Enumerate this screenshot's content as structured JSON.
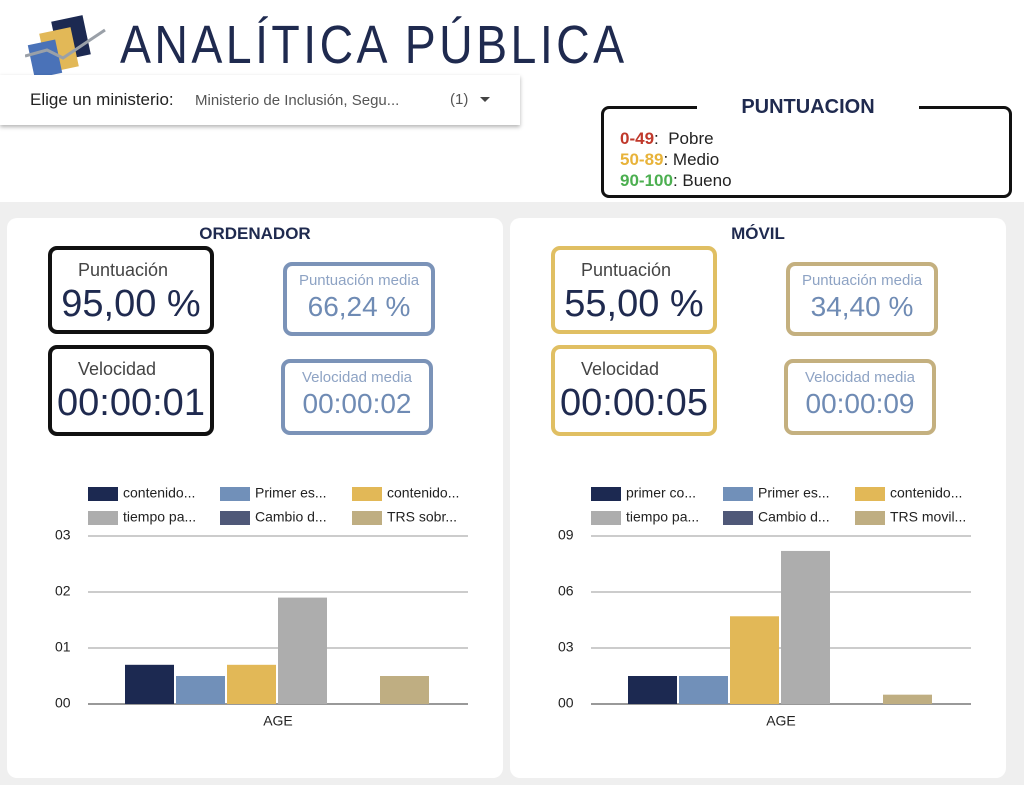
{
  "header": {
    "title": "ANALÍTICA PÚBLICA"
  },
  "selector": {
    "label": "Elige un ministerio:",
    "value": "Ministerio de Inclusión, Segu...",
    "count": "(1)"
  },
  "score_legend": {
    "title": "PUNTUACION",
    "rows": [
      {
        "range": "0-49",
        "label": ":  Pobre",
        "color": "#c0392b"
      },
      {
        "range": "50-89",
        "label": ": Medio",
        "color": "#e8b33a"
      },
      {
        "range": "90-100",
        "label": ": Bueno",
        "color": "#4caf50"
      }
    ]
  },
  "panels": [
    {
      "title": "ORDENADOR",
      "score": {
        "label": "Puntuación",
        "value": "95,00 %"
      },
      "score_avg": {
        "label": "Puntuación media",
        "value": "66,24 %"
      },
      "speed": {
        "label": "Velocidad",
        "value": "00:00:01"
      },
      "speed_avg": {
        "label": "Velocidad media",
        "value": "00:00:02"
      }
    },
    {
      "title": "MÓVIL",
      "score": {
        "label": "Puntuación",
        "value": "55,00 %"
      },
      "score_avg": {
        "label": "Puntuación media",
        "value": "34,40 %"
      },
      "speed": {
        "label": "Velocidad",
        "value": "00:00:05"
      },
      "speed_avg": {
        "label": "Velocidad media",
        "value": "00:00:09"
      }
    }
  ],
  "chart_data": [
    {
      "type": "bar",
      "categories": [
        "AGE"
      ],
      "ylim": [
        0,
        3
      ],
      "yticks": [
        {
          "value": 0,
          "label": "00"
        },
        {
          "value": 1,
          "label": "01"
        },
        {
          "value": 2,
          "label": "02"
        },
        {
          "value": 3,
          "label": "03"
        }
      ],
      "series": [
        {
          "name": "contenido...",
          "color": "#1c2951",
          "values": [
            0.7
          ]
        },
        {
          "name": "Primer es...",
          "color": "#7190b9",
          "values": [
            0.5
          ]
        },
        {
          "name": "contenido...",
          "color": "#e2b857",
          "values": [
            0.7
          ]
        },
        {
          "name": "tiempo pa...",
          "color": "#adadad",
          "values": [
            1.9
          ]
        },
        {
          "name": "Cambio d...",
          "color": "#4f5878",
          "values": [
            0
          ]
        },
        {
          "name": "TRS sobr...",
          "color": "#bfae82",
          "values": [
            0.5
          ]
        }
      ]
    },
    {
      "type": "bar",
      "categories": [
        "AGE"
      ],
      "ylim": [
        0,
        9
      ],
      "yticks": [
        {
          "value": 0,
          "label": "00"
        },
        {
          "value": 3,
          "label": "03"
        },
        {
          "value": 6,
          "label": "06"
        },
        {
          "value": 9,
          "label": "09"
        }
      ],
      "series": [
        {
          "name": "primer co...",
          "color": "#1c2951",
          "values": [
            1.5
          ]
        },
        {
          "name": "Primer es...",
          "color": "#7190b9",
          "values": [
            1.5
          ]
        },
        {
          "name": "contenido...",
          "color": "#e2b857",
          "values": [
            4.7
          ]
        },
        {
          "name": "tiempo pa...",
          "color": "#adadad",
          "values": [
            8.2
          ]
        },
        {
          "name": "Cambio d...",
          "color": "#4f5878",
          "values": [
            0
          ]
        },
        {
          "name": "TRS movil...",
          "color": "#bfae82",
          "values": [
            0.5
          ]
        }
      ]
    }
  ]
}
